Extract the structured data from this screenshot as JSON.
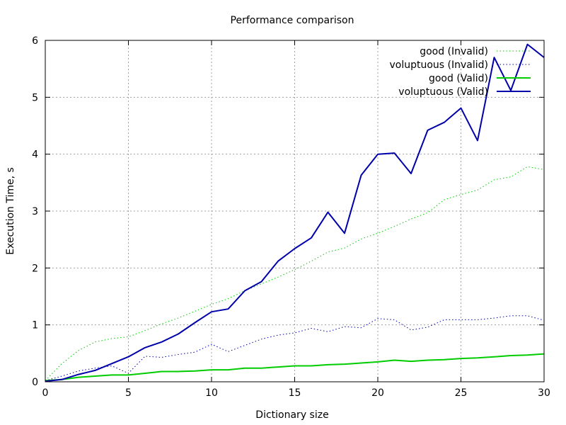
{
  "chart_data": {
    "type": "line",
    "title": "Performance comparison",
    "xlabel": "Dictionary size",
    "ylabel": "Execution Time, s",
    "xlim": [
      0,
      30
    ],
    "ylim": [
      0,
      6
    ],
    "xticks": [
      0,
      5,
      10,
      15,
      20,
      25,
      30
    ],
    "yticks": [
      0,
      1,
      2,
      3,
      4,
      5,
      6
    ],
    "grid": true,
    "legend_position": "top-right",
    "x": [
      0,
      1,
      2,
      3,
      4,
      5,
      6,
      7,
      8,
      9,
      10,
      11,
      12,
      13,
      14,
      15,
      16,
      17,
      18,
      19,
      20,
      21,
      22,
      23,
      24,
      25,
      26,
      27,
      28,
      29,
      30
    ],
    "series": [
      {
        "name": "good (Invalid)",
        "color": "#00cc00",
        "style": "dotted",
        "values": [
          0.02,
          0.32,
          0.55,
          0.7,
          0.76,
          0.79,
          0.9,
          1.02,
          1.12,
          1.24,
          1.36,
          1.46,
          1.6,
          1.72,
          1.84,
          1.97,
          2.12,
          2.28,
          2.35,
          2.51,
          2.61,
          2.73,
          2.86,
          2.97,
          3.2,
          3.29,
          3.37,
          3.55,
          3.6,
          3.78,
          3.73
        ]
      },
      {
        "name": "voluptuous (Invalid)",
        "color": "#0000aa",
        "style": "dotted",
        "values": [
          0.02,
          0.1,
          0.19,
          0.24,
          0.28,
          0.15,
          0.45,
          0.43,
          0.48,
          0.52,
          0.66,
          0.53,
          0.64,
          0.75,
          0.82,
          0.86,
          0.94,
          0.88,
          0.97,
          0.95,
          1.11,
          1.09,
          0.91,
          0.96,
          1.09,
          1.09,
          1.09,
          1.12,
          1.16,
          1.16,
          1.08
        ]
      },
      {
        "name": "good (Valid)",
        "color": "#00cc00",
        "style": "solid",
        "values": [
          0.02,
          0.04,
          0.08,
          0.1,
          0.12,
          0.12,
          0.15,
          0.18,
          0.18,
          0.19,
          0.21,
          0.21,
          0.24,
          0.24,
          0.26,
          0.28,
          0.28,
          0.3,
          0.31,
          0.33,
          0.35,
          0.38,
          0.36,
          0.38,
          0.39,
          0.41,
          0.42,
          0.44,
          0.46,
          0.47,
          0.49
        ]
      },
      {
        "name": "voluptuous (Valid)",
        "color": "#0000aa",
        "style": "solid",
        "values": [
          0.01,
          0.04,
          0.13,
          0.2,
          0.32,
          0.44,
          0.6,
          0.7,
          0.84,
          1.04,
          1.23,
          1.28,
          1.6,
          1.76,
          2.12,
          2.34,
          2.53,
          2.98,
          2.61,
          3.63,
          4.0,
          4.02,
          3.66,
          4.42,
          4.56,
          4.81,
          4.24,
          5.7,
          5.12,
          5.93,
          5.7
        ]
      }
    ]
  }
}
